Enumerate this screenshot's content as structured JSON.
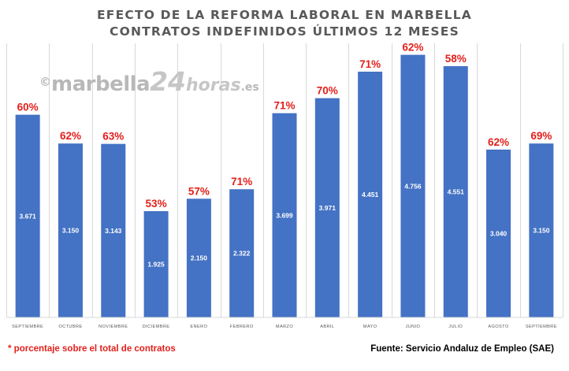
{
  "chart_data": {
    "type": "bar",
    "title": [
      "EFECTO DE LA REFORMA LABORAL EN MARBELLA",
      "CONTRATOS INDEFINIDOS ÚLTIMOS 12 MESES"
    ],
    "categories": [
      "SEPTIEMBRE",
      "OCTUBRE",
      "NOVIEMBRE",
      "DICIEMBRE",
      "ENERO",
      "FEBRERO",
      "MARZO",
      "ABRIL",
      "MAYO",
      "JUNIO",
      "JULIO",
      "AGOSTO",
      "SEPTIEMBRE"
    ],
    "values": [
      3671,
      3150,
      3143,
      1925,
      2150,
      2322,
      3699,
      3971,
      4451,
      4756,
      4551,
      3040,
      3150
    ],
    "value_labels": [
      "3.671",
      "3.150",
      "3.143",
      "1.925",
      "2.150",
      "2.322",
      "3.699",
      "3.971",
      "4.451",
      "4.756",
      "4.551",
      "3.040",
      "3.150"
    ],
    "percent_labels": [
      "60%",
      "62%",
      "63%",
      "53%",
      "57%",
      "71%",
      "71%",
      "70%",
      "71%",
      "62%",
      "58%",
      "62%",
      "69%"
    ],
    "ylim": [
      0,
      5000
    ],
    "grid": "vertical-lines",
    "bar_color": "#4472c4",
    "percent_color": "#e3201b"
  },
  "footnote": "* porcentaje sobre el total de contratos",
  "source": "Fuente: Servicio Andaluz de Empleo (SAE)",
  "watermark": {
    "copyright": "©",
    "part1": "marbella",
    "part2": "24",
    "part3": "horas",
    "part4": ".es"
  }
}
